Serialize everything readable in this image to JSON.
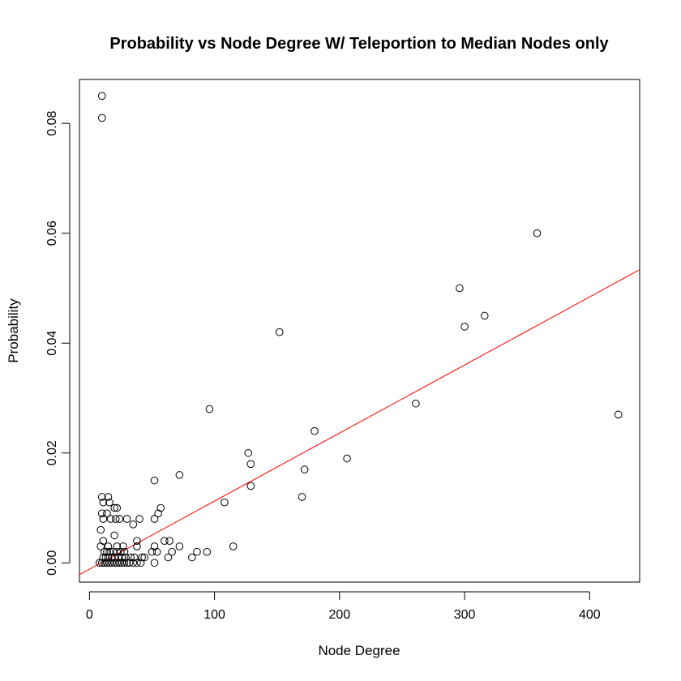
{
  "chart_data": {
    "type": "scatter",
    "title": "Probability vs Node Degree W/ Teleportion to Median Nodes only",
    "xlabel": "Node Degree",
    "ylabel": "Probability",
    "xlim": [
      -8,
      440
    ],
    "ylim": [
      -0.0035,
      0.088
    ],
    "xticks": [
      0,
      100,
      200,
      300,
      400
    ],
    "xtick_labels": [
      "0",
      "100",
      "200",
      "300",
      "400"
    ],
    "yticks": [
      0.0,
      0.02,
      0.04,
      0.06,
      0.08
    ],
    "ytick_labels": [
      "0.00",
      "0.02",
      "0.04",
      "0.06",
      "0.08"
    ],
    "grid": false,
    "point_color": "#000000",
    "fit_line_color": "#ff0000",
    "fit_line": {
      "slope": 0.0001239,
      "intercept": -0.00115
    },
    "points": [
      [
        10,
        0.085
      ],
      [
        10,
        0.081
      ],
      [
        358,
        0.06
      ],
      [
        296,
        0.05
      ],
      [
        316,
        0.045
      ],
      [
        300,
        0.043
      ],
      [
        152,
        0.042
      ],
      [
        261,
        0.029
      ],
      [
        96,
        0.028
      ],
      [
        423,
        0.027
      ],
      [
        180,
        0.024
      ],
      [
        127,
        0.02
      ],
      [
        206,
        0.019
      ],
      [
        129,
        0.018
      ],
      [
        172,
        0.017
      ],
      [
        72,
        0.016
      ],
      [
        52,
        0.015
      ],
      [
        129,
        0.014
      ],
      [
        170,
        0.012
      ],
      [
        108,
        0.011
      ],
      [
        57,
        0.01
      ],
      [
        55,
        0.009
      ],
      [
        52,
        0.008
      ],
      [
        35,
        0.007
      ],
      [
        60,
        0.004
      ],
      [
        64,
        0.004
      ],
      [
        115,
        0.003
      ],
      [
        72,
        0.003
      ],
      [
        52,
        0.003
      ],
      [
        86,
        0.002
      ],
      [
        94,
        0.002
      ],
      [
        66,
        0.002
      ],
      [
        50,
        0.002
      ],
      [
        54,
        0.002
      ],
      [
        82,
        0.001
      ],
      [
        63,
        0.001
      ],
      [
        42,
        0.001
      ],
      [
        52,
        0.0
      ],
      [
        10,
        0.012
      ],
      [
        15,
        0.012
      ],
      [
        11,
        0.011
      ],
      [
        16,
        0.011
      ],
      [
        20,
        0.01
      ],
      [
        22,
        0.01
      ],
      [
        10,
        0.009
      ],
      [
        14,
        0.009
      ],
      [
        11,
        0.008
      ],
      [
        17,
        0.008
      ],
      [
        21,
        0.008
      ],
      [
        24,
        0.008
      ],
      [
        30,
        0.008
      ],
      [
        40,
        0.008
      ],
      [
        9,
        0.006
      ],
      [
        20,
        0.005
      ],
      [
        11,
        0.004
      ],
      [
        38,
        0.004
      ],
      [
        9,
        0.003
      ],
      [
        15,
        0.003
      ],
      [
        22,
        0.003
      ],
      [
        27,
        0.003
      ],
      [
        38,
        0.003
      ],
      [
        12,
        0.002
      ],
      [
        14,
        0.002
      ],
      [
        16,
        0.002
      ],
      [
        19,
        0.002
      ],
      [
        22,
        0.002
      ],
      [
        25,
        0.002
      ],
      [
        28,
        0.002
      ],
      [
        11,
        0.001
      ],
      [
        13,
        0.001
      ],
      [
        15,
        0.001
      ],
      [
        18,
        0.001
      ],
      [
        20,
        0.001
      ],
      [
        23,
        0.001
      ],
      [
        26,
        0.001
      ],
      [
        29,
        0.001
      ],
      [
        33,
        0.001
      ],
      [
        36,
        0.001
      ],
      [
        44,
        0.001
      ],
      [
        8,
        0.0
      ],
      [
        10,
        0.0
      ],
      [
        12,
        0.0
      ],
      [
        14,
        0.0
      ],
      [
        16,
        0.0
      ],
      [
        18,
        0.0
      ],
      [
        20,
        0.0
      ],
      [
        22,
        0.0
      ],
      [
        24,
        0.0
      ],
      [
        26,
        0.0
      ],
      [
        28,
        0.0
      ],
      [
        30,
        0.0
      ],
      [
        32,
        0.0
      ],
      [
        35,
        0.0
      ],
      [
        38,
        0.0
      ],
      [
        41,
        0.0
      ]
    ]
  }
}
